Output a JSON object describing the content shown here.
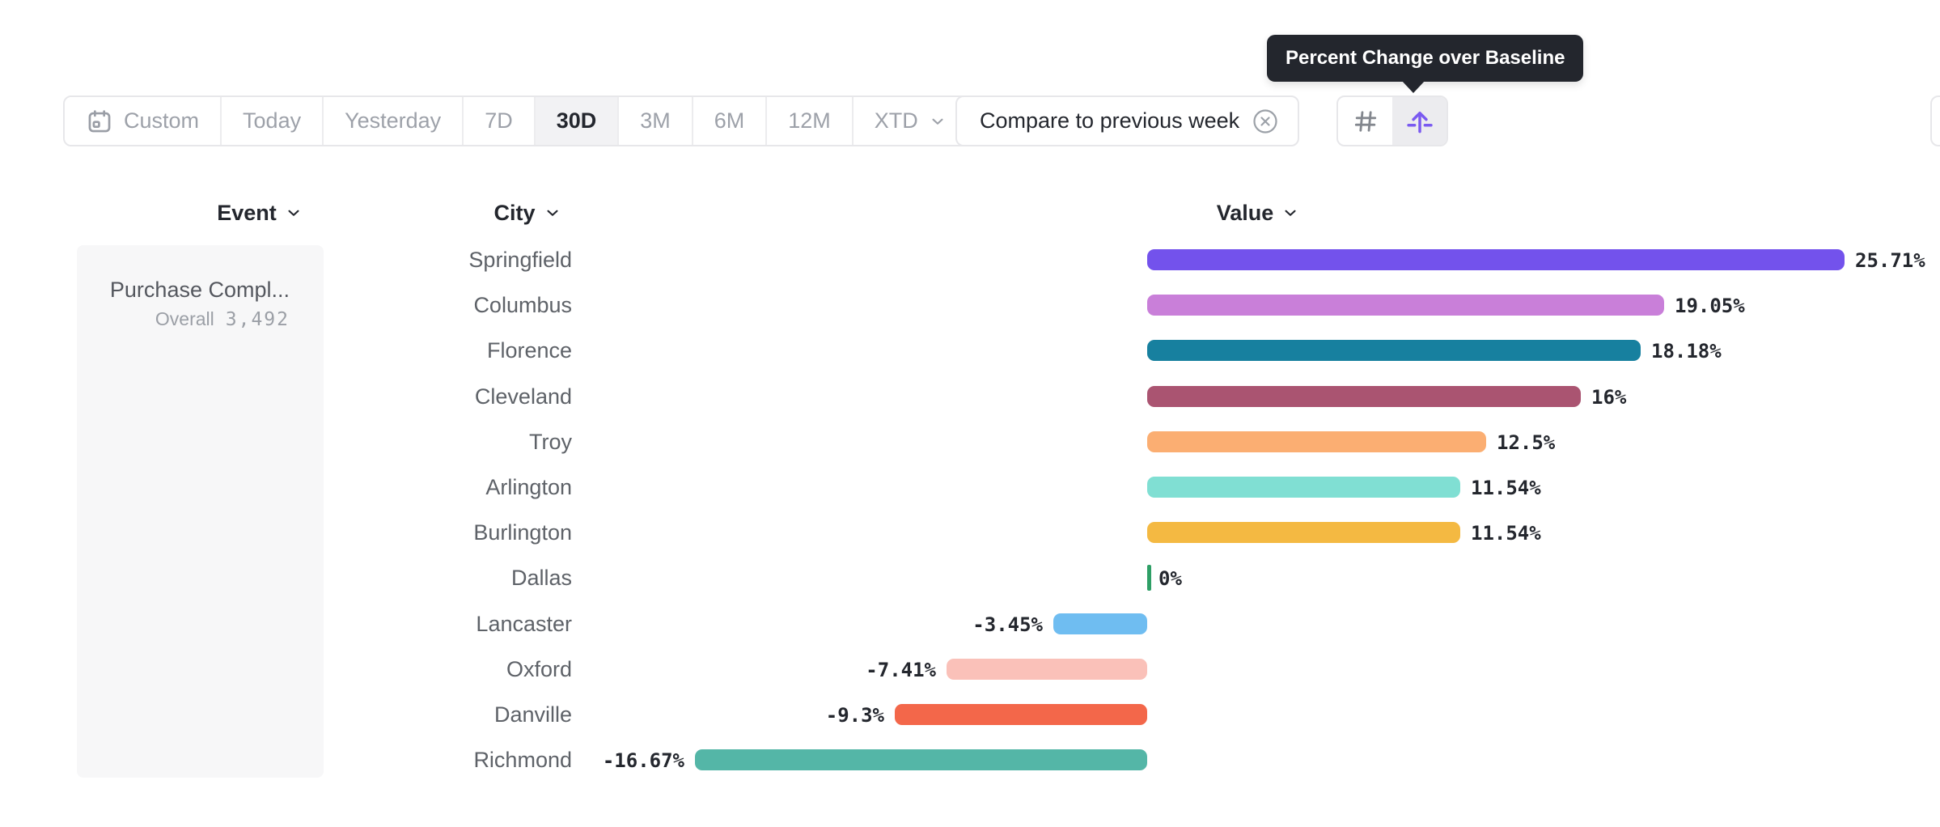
{
  "toolbar": {
    "date_ranges": [
      {
        "label": "Custom",
        "icon": "calendar-icon",
        "selected": false,
        "chevron": false
      },
      {
        "label": "Today",
        "selected": false,
        "chevron": false
      },
      {
        "label": "Yesterday",
        "selected": false,
        "chevron": false
      },
      {
        "label": "7D",
        "selected": false,
        "chevron": false
      },
      {
        "label": "30D",
        "selected": true,
        "chevron": false
      },
      {
        "label": "3M",
        "selected": false,
        "chevron": false
      },
      {
        "label": "6M",
        "selected": false,
        "chevron": false
      },
      {
        "label": "12M",
        "selected": false,
        "chevron": false
      },
      {
        "label": "XTD",
        "selected": false,
        "chevron": true
      }
    ],
    "compare_chip": {
      "label": "Compare to previous week",
      "dismiss_icon": "circle-x-icon"
    },
    "view_toggle": {
      "left_icon": "hash-icon",
      "right_icon": "baseline-arrow-icon",
      "selected": "right",
      "accent_color": "#7A5AF0",
      "inactive_icon_color": "#83878E"
    }
  },
  "tooltip": {
    "text": "Percent Change over Baseline",
    "background": "#23262D",
    "text_color": "#FFFFFF"
  },
  "columns": {
    "event": "Event",
    "city": "City",
    "value": "Value"
  },
  "event_panel": {
    "event_name": "Purchase Compl...",
    "overall_label": "Overall",
    "overall_value": "3,492"
  },
  "chart_data": {
    "type": "bar",
    "orientation": "horizontal",
    "unit": "percent",
    "baseline": 0,
    "xlim": [
      -16.67,
      25.71
    ],
    "grid": false,
    "legend": false,
    "categories": [
      "Springfield",
      "Columbus",
      "Florence",
      "Cleveland",
      "Troy",
      "Arlington",
      "Burlington",
      "Dallas",
      "Lancaster",
      "Oxford",
      "Danville",
      "Richmond"
    ],
    "values": [
      25.71,
      19.05,
      18.18,
      16,
      12.5,
      11.54,
      11.54,
      0,
      -3.45,
      -7.41,
      -9.3,
      -16.67
    ],
    "value_labels": [
      "25.71%",
      "19.05%",
      "18.18%",
      "16%",
      "12.5%",
      "11.54%",
      "11.54%",
      "0%",
      "-3.45%",
      "-7.41%",
      "-9.3%",
      "-16.67%"
    ],
    "bar_colors": [
      "#7352EC",
      "#C97FD9",
      "#17809F",
      "#AA5471",
      "#FBAE72",
      "#80DFD3",
      "#F4B942",
      "#2E9F66",
      "#6FBDF1",
      "#FAC1B9",
      "#F3674A",
      "#54B6A7"
    ],
    "value_label_color": "#24272E",
    "city_label_color": "#5E6268"
  }
}
